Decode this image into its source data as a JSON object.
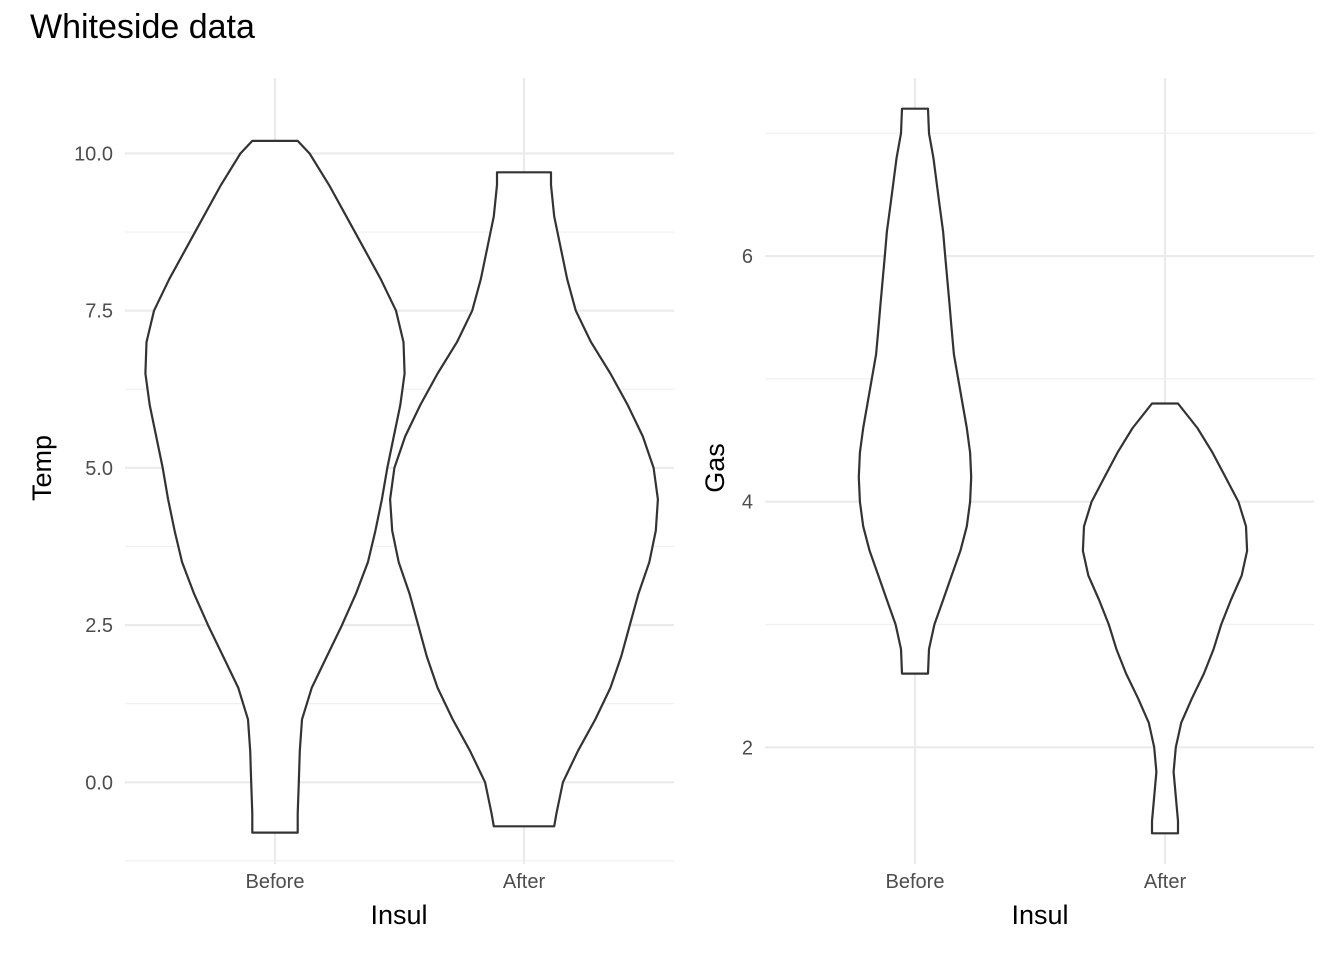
{
  "title": "Whiteside data",
  "chart_data": [
    {
      "type": "violin",
      "xlabel": "Insul",
      "ylabel": "Temp",
      "categories": [
        "Before",
        "After"
      ],
      "ylim": [
        -1.3,
        11.2
      ],
      "yticks": [
        0.0,
        2.5,
        5.0,
        7.5,
        10.0
      ],
      "ytick_labels": [
        "0.0",
        "2.5",
        "5.0",
        "7.5",
        "10.0"
      ],
      "grid": true,
      "series": [
        {
          "category": "Before",
          "min": -0.8,
          "max": 10.2,
          "profile": [
            [
              -0.8,
              0.21
            ],
            [
              -0.5,
              0.21
            ],
            [
              0.0,
              0.22
            ],
            [
              0.5,
              0.23
            ],
            [
              1.0,
              0.25
            ],
            [
              1.5,
              0.34
            ],
            [
              2.0,
              0.48
            ],
            [
              2.5,
              0.62
            ],
            [
              3.0,
              0.75
            ],
            [
              3.5,
              0.86
            ],
            [
              4.0,
              0.93
            ],
            [
              4.5,
              0.99
            ],
            [
              5.0,
              1.04
            ],
            [
              5.5,
              1.1
            ],
            [
              6.0,
              1.16
            ],
            [
              6.5,
              1.2
            ],
            [
              7.0,
              1.19
            ],
            [
              7.5,
              1.12
            ],
            [
              8.0,
              0.98
            ],
            [
              8.5,
              0.82
            ],
            [
              9.0,
              0.66
            ],
            [
              9.5,
              0.5
            ],
            [
              10.0,
              0.32
            ],
            [
              10.2,
              0.21
            ]
          ]
        },
        {
          "category": "After",
          "min": -0.7,
          "max": 9.7,
          "profile": [
            [
              -0.7,
              0.28
            ],
            [
              -0.5,
              0.3
            ],
            [
              0.0,
              0.36
            ],
            [
              0.5,
              0.5
            ],
            [
              1.0,
              0.66
            ],
            [
              1.5,
              0.8
            ],
            [
              2.0,
              0.9
            ],
            [
              2.5,
              0.98
            ],
            [
              3.0,
              1.06
            ],
            [
              3.5,
              1.16
            ],
            [
              4.0,
              1.22
            ],
            [
              4.5,
              1.24
            ],
            [
              5.0,
              1.2
            ],
            [
              5.5,
              1.1
            ],
            [
              6.0,
              0.96
            ],
            [
              6.5,
              0.8
            ],
            [
              7.0,
              0.62
            ],
            [
              7.5,
              0.48
            ],
            [
              8.0,
              0.4
            ],
            [
              8.5,
              0.34
            ],
            [
              9.0,
              0.28
            ],
            [
              9.5,
              0.25
            ],
            [
              9.7,
              0.25
            ]
          ]
        }
      ]
    },
    {
      "type": "violin",
      "xlabel": "Insul",
      "ylabel": "Gas",
      "categories": [
        "Before",
        "After"
      ],
      "ylim": [
        1.05,
        7.45
      ],
      "yticks": [
        2,
        4,
        6
      ],
      "ytick_labels": [
        "2",
        "4",
        "6"
      ],
      "grid": true,
      "series": [
        {
          "category": "Before",
          "min": 2.6,
          "max": 7.2,
          "profile": [
            [
              2.6,
              0.12
            ],
            [
              2.8,
              0.13
            ],
            [
              3.0,
              0.18
            ],
            [
              3.2,
              0.26
            ],
            [
              3.4,
              0.34
            ],
            [
              3.6,
              0.42
            ],
            [
              3.8,
              0.48
            ],
            [
              4.0,
              0.51
            ],
            [
              4.2,
              0.52
            ],
            [
              4.4,
              0.51
            ],
            [
              4.6,
              0.48
            ],
            [
              4.8,
              0.44
            ],
            [
              5.0,
              0.4
            ],
            [
              5.2,
              0.36
            ],
            [
              5.4,
              0.34
            ],
            [
              5.6,
              0.32
            ],
            [
              5.8,
              0.3
            ],
            [
              6.0,
              0.28
            ],
            [
              6.2,
              0.26
            ],
            [
              6.4,
              0.23
            ],
            [
              6.6,
              0.2
            ],
            [
              6.8,
              0.17
            ],
            [
              7.0,
              0.13
            ],
            [
              7.2,
              0.12
            ]
          ]
        },
        {
          "category": "After",
          "min": 1.3,
          "max": 4.8,
          "profile": [
            [
              1.3,
              0.12
            ],
            [
              1.4,
              0.12
            ],
            [
              1.6,
              0.1
            ],
            [
              1.8,
              0.08
            ],
            [
              2.0,
              0.1
            ],
            [
              2.2,
              0.15
            ],
            [
              2.4,
              0.25
            ],
            [
              2.6,
              0.36
            ],
            [
              2.8,
              0.45
            ],
            [
              3.0,
              0.52
            ],
            [
              3.2,
              0.61
            ],
            [
              3.4,
              0.71
            ],
            [
              3.6,
              0.76
            ],
            [
              3.8,
              0.75
            ],
            [
              4.0,
              0.68
            ],
            [
              4.2,
              0.56
            ],
            [
              4.4,
              0.44
            ],
            [
              4.6,
              0.3
            ],
            [
              4.8,
              0.12
            ]
          ]
        }
      ]
    }
  ]
}
